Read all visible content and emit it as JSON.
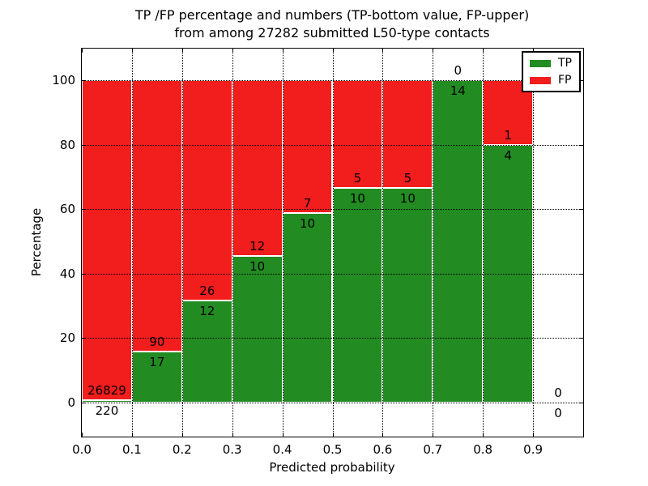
{
  "title": {
    "line1": "TP /FP percentage and numbers (TP-bottom value, FP-upper)",
    "line2": "from among 27282 submitted L50-type contacts"
  },
  "axes": {
    "xlabel": "Predicted probability",
    "ylabel": "Percentage",
    "x_tick_labels": [
      "0.0",
      "0.1",
      "0.2",
      "0.3",
      "0.4",
      "0.5",
      "0.6",
      "0.7",
      "0.8",
      "0.9"
    ],
    "y_tick_values": [
      0,
      20,
      40,
      60,
      80,
      100
    ],
    "x_range": [
      0.0,
      1.0
    ],
    "grid_style": "dotted"
  },
  "legend": {
    "position": "upper right",
    "entries": [
      {
        "label": "TP",
        "color": "#228b22"
      },
      {
        "label": "FP",
        "color": "#f21d1d"
      }
    ]
  },
  "chart_data": {
    "type": "bar",
    "stacked": true,
    "normalized": "each bin scaled to 100%",
    "title": "TP /FP percentage and numbers (TP-bottom value, FP-upper) from among 27282 submitted L50-type contacts",
    "xlabel": "Predicted probability",
    "ylabel": "Percentage",
    "total_contacts": 27282,
    "bins": [
      "0.0-0.1",
      "0.1-0.2",
      "0.2-0.3",
      "0.3-0.4",
      "0.4-0.5",
      "0.5-0.6",
      "0.6-0.7",
      "0.7-0.8",
      "0.8-0.9",
      "0.9-1.0"
    ],
    "series": [
      {
        "name": "TP",
        "color": "#228b22",
        "counts": [
          220,
          17,
          12,
          10,
          10,
          10,
          10,
          14,
          4,
          0
        ],
        "percent": [
          0.81,
          15.89,
          31.58,
          45.45,
          58.82,
          66.67,
          66.67,
          100.0,
          80.0,
          0
        ]
      },
      {
        "name": "FP",
        "color": "#f21d1d",
        "counts": [
          26829,
          90,
          26,
          12,
          7,
          5,
          5,
          0,
          1,
          0
        ],
        "percent": [
          99.19,
          84.11,
          68.42,
          54.55,
          41.18,
          33.33,
          33.33,
          0.0,
          20.0,
          0
        ]
      }
    ],
    "annotation_note": "FP count printed above TP/FP boundary, TP count printed below it",
    "ylim": [
      0,
      100
    ],
    "grid": true,
    "legend_position": "upper right"
  }
}
